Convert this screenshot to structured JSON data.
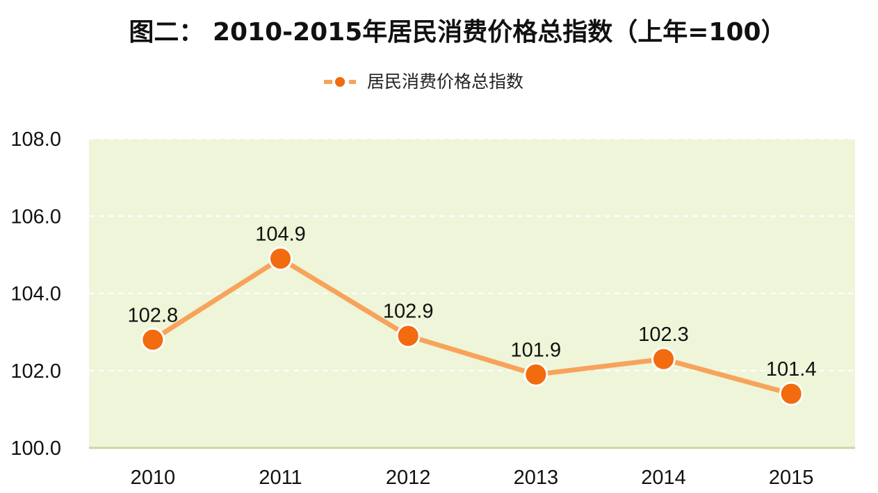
{
  "chart_data": {
    "type": "line",
    "title": "图二： 2010-2015年居民消费价格总指数（上年=100）",
    "categories": [
      "2010",
      "2011",
      "2012",
      "2013",
      "2014",
      "2015"
    ],
    "series": [
      {
        "name": "居民消费价格总指数",
        "values": [
          102.8,
          104.9,
          102.9,
          101.9,
          102.3,
          101.4
        ]
      }
    ],
    "ylim": [
      100.0,
      108.0
    ],
    "yticks": [
      "100.0",
      "102.0",
      "104.0",
      "106.0",
      "108.0"
    ],
    "grid": true,
    "legend": "top-center",
    "data_labels": true
  },
  "colors": {
    "plot_background": "#eef5d8",
    "line": "#f7a35c",
    "marker": "#f26b0f",
    "marker_edge": "#ffffff",
    "gridline": "#ffffff",
    "baseline": "#c6d7a0"
  }
}
